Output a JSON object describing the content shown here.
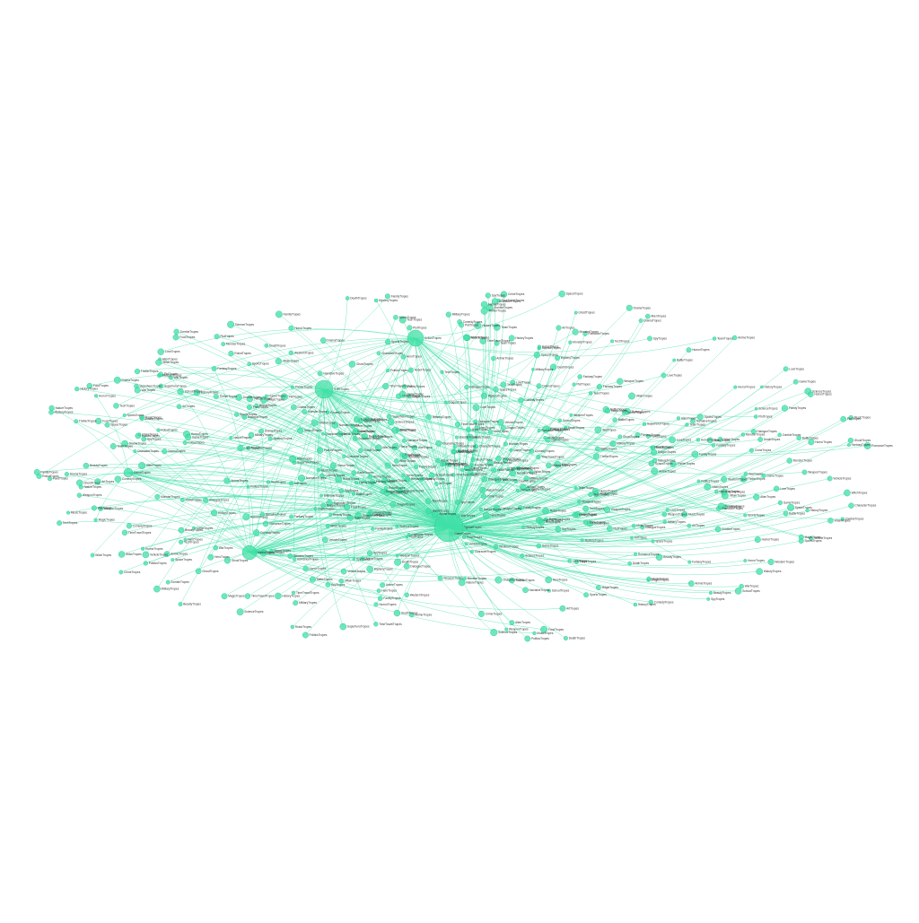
{
  "graph": {
    "edge_color": "#43e0a8",
    "node_color": "#3fe0a6",
    "node_stroke": "#23c48b",
    "label_color": "#333333",
    "hubs": [
      {
        "id": "h1",
        "label": "TypicalTropes"
      },
      {
        "id": "h2",
        "label": "SciFiTropes"
      },
      {
        "id": "h3",
        "label": "ActionTropes"
      },
      {
        "id": "h4",
        "label": "MediaTropes"
      },
      {
        "id": "h5",
        "label": "GenreTropes"
      }
    ],
    "leaf_labels": [
      "AlienTropes",
      "AnimeTropes",
      "ArtTropes",
      "BattleTropes",
      "BeautyTropes",
      "CharacterTropes",
      "ComedyTropes",
      "CrimeTropes",
      "DeathTropes",
      "DialogueTropes",
      "DragonTropes",
      "DramaTropes",
      "FamilyTropes",
      "FantasyTropes",
      "FoodTropes",
      "GameTropes",
      "GhostTropes",
      "HeroTropes",
      "HistoryTropes",
      "HorrorTropes",
      "HumorTropes",
      "LoveTropes",
      "MagicTropes",
      "MilitaryTropes",
      "MonsterTropes",
      "MusicTropes",
      "MysteryTropes",
      "NarrativeTropes",
      "NatureTropes",
      "PlotTropes",
      "PoliticsTropes",
      "RobotTropes",
      "RomanceTropes",
      "SchoolTropes",
      "ScienceTropes",
      "SpaceTropes",
      "SportsTropes",
      "SpyTropes",
      "SuperheroTropes",
      "TechTropes",
      "ThrillerTropes",
      "TimeTravelTropes",
      "VillainTropes",
      "WarTropes",
      "WesternTropes",
      "WeaponTropes",
      "WitchTropes",
      "ZombieTropes",
      "VehicleTropes",
      "TeamTropes"
    ]
  }
}
